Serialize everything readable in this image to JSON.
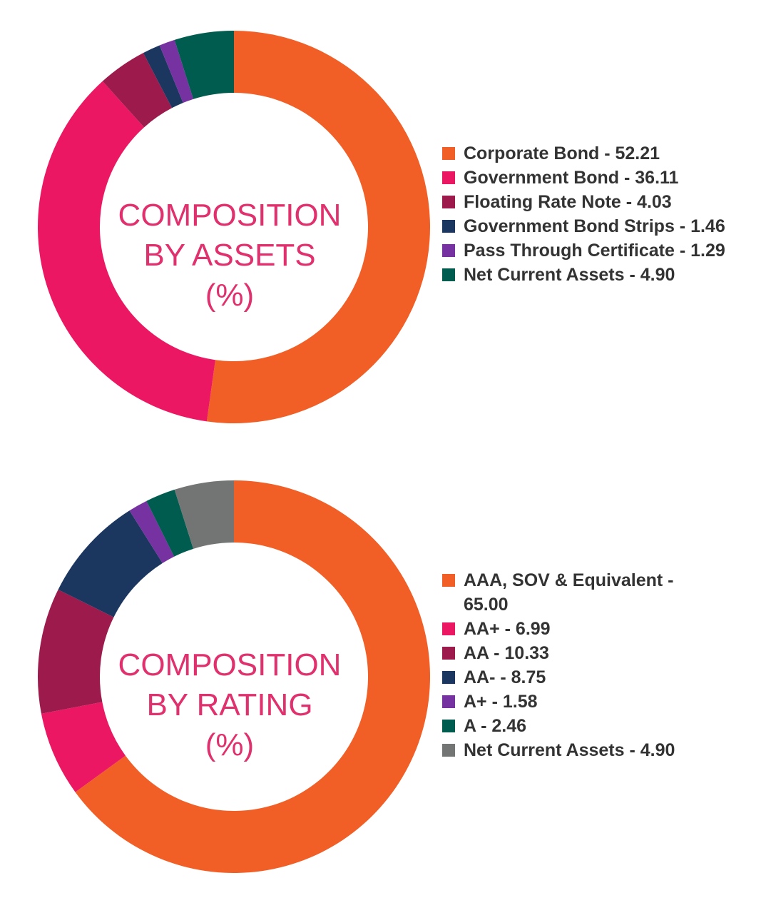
{
  "chart_data": [
    {
      "type": "pie",
      "title": "COMPOSITION BY ASSETS (%)",
      "title_lines": [
        "COMPOSITION",
        "BY ASSETS",
        "(%)"
      ],
      "donut": true,
      "slices": [
        {
          "label": "Corporate Bond - 52.21",
          "value": 52.21,
          "color": "#f15e26"
        },
        {
          "label": "Government Bond - 36.11",
          "value": 36.11,
          "color": "#ec1763"
        },
        {
          "label": "Floating Rate Note - 4.03",
          "value": 4.03,
          "color": "#9c1a4c"
        },
        {
          "label": "Government Bond Strips - 1.46",
          "value": 1.46,
          "color": "#1b365f"
        },
        {
          "label": "Pass Through Certificate - 1.29",
          "value": 1.29,
          "color": "#7532a0"
        },
        {
          "label": "Net Current Assets - 4.90",
          "value": 4.9,
          "color": "#005c4e"
        }
      ]
    },
    {
      "type": "pie",
      "title": "COMPOSITION BY RATING (%)",
      "title_lines": [
        "COMPOSITION",
        "BY RATING",
        "(%)"
      ],
      "donut": true,
      "slices": [
        {
          "label": "AAA, SOV & Equivalent - 65.00",
          "value": 65.0,
          "color": "#f15e26"
        },
        {
          "label": "AA+ - 6.99",
          "value": 6.99,
          "color": "#ec1763"
        },
        {
          "label": "AA - 10.33",
          "value": 10.33,
          "color": "#9c1a4c"
        },
        {
          "label": "AA- - 8.75",
          "value": 8.75,
          "color": "#1b365f"
        },
        {
          "label": "A+ - 1.58",
          "value": 1.58,
          "color": "#7532a0"
        },
        {
          "label": "A - 2.46",
          "value": 2.46,
          "color": "#005c4e"
        },
        {
          "label": "Net Current Assets - 4.90",
          "value": 4.9,
          "color": "#737474"
        }
      ]
    }
  ]
}
